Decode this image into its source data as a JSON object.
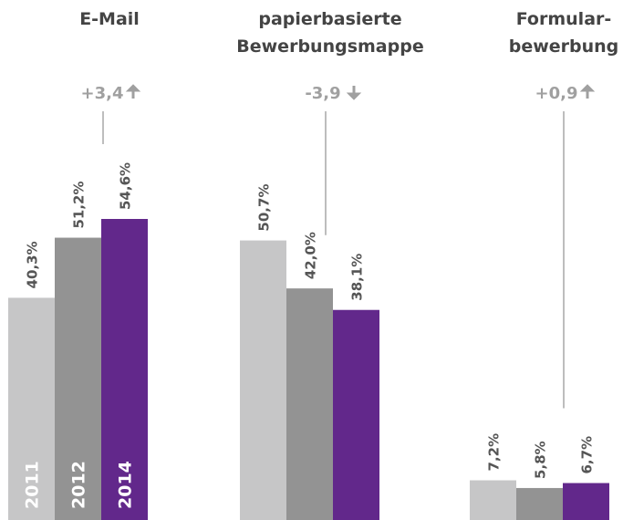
{
  "chart_data": {
    "type": "bar",
    "categories": [
      "E-Mail",
      "papierbasierte Bewerbungsmappe",
      "Formular-bewerbung"
    ],
    "title_lines": [
      [
        "E-Mail"
      ],
      [
        "papierbasierte",
        "Bewerbungsmappe"
      ],
      [
        "Formular-",
        "bewerbung"
      ]
    ],
    "series": [
      {
        "name": "2011",
        "values": [
          40.3,
          50.7,
          7.2
        ],
        "labels": [
          "40,3%",
          "50,7%",
          "7,2%"
        ],
        "color": "#c6c6c7"
      },
      {
        "name": "2012",
        "values": [
          51.2,
          42.0,
          5.8
        ],
        "labels": [
          "51,2%",
          "42,0%",
          "5,8%"
        ],
        "color": "#939393"
      },
      {
        "name": "2014",
        "values": [
          54.6,
          38.1,
          6.7
        ],
        "labels": [
          "54,6%",
          "38,1%",
          "6,7%"
        ],
        "color": "#62288b"
      }
    ],
    "changes": [
      {
        "text": "+3,4",
        "direction": "up"
      },
      {
        "text": "-3,9",
        "direction": "down"
      },
      {
        "text": "+0,9",
        "direction": "up"
      }
    ],
    "year_labels_in_bars": true,
    "ylim": [
      0,
      60
    ],
    "grid": false
  },
  "colors": {
    "title": "#444444",
    "change": "#a0a0a0",
    "value_label": "#555555",
    "connector": "#bdbdbd",
    "year_label": "#ffffff"
  }
}
